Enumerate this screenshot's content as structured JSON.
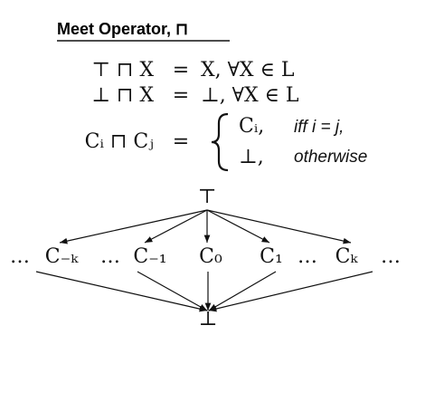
{
  "title": "Meet Operator, ⊓",
  "equations": [
    {
      "lhs": "⊤ ⊓ X",
      "rel": "=",
      "rhs": "X,  ∀X ∈ L"
    },
    {
      "lhs": "⊥ ⊓ X",
      "rel": "=",
      "rhs": "⊥,  ∀X ∈ L"
    },
    {
      "lhs": "Cᵢ ⊓ Cⱼ",
      "rel": "=",
      "cases": [
        {
          "value": "Cᵢ,",
          "condition": "iff i = j,"
        },
        {
          "value": "⊥,",
          "condition": "otherwise"
        }
      ]
    }
  ],
  "lattice": {
    "top": "⊤",
    "bottom": "⊥",
    "middle": [
      "…",
      "C₋ₖ",
      "…",
      "C₋₁",
      "C₀",
      "C₁",
      "…",
      "Cₖ",
      "…"
    ]
  }
}
